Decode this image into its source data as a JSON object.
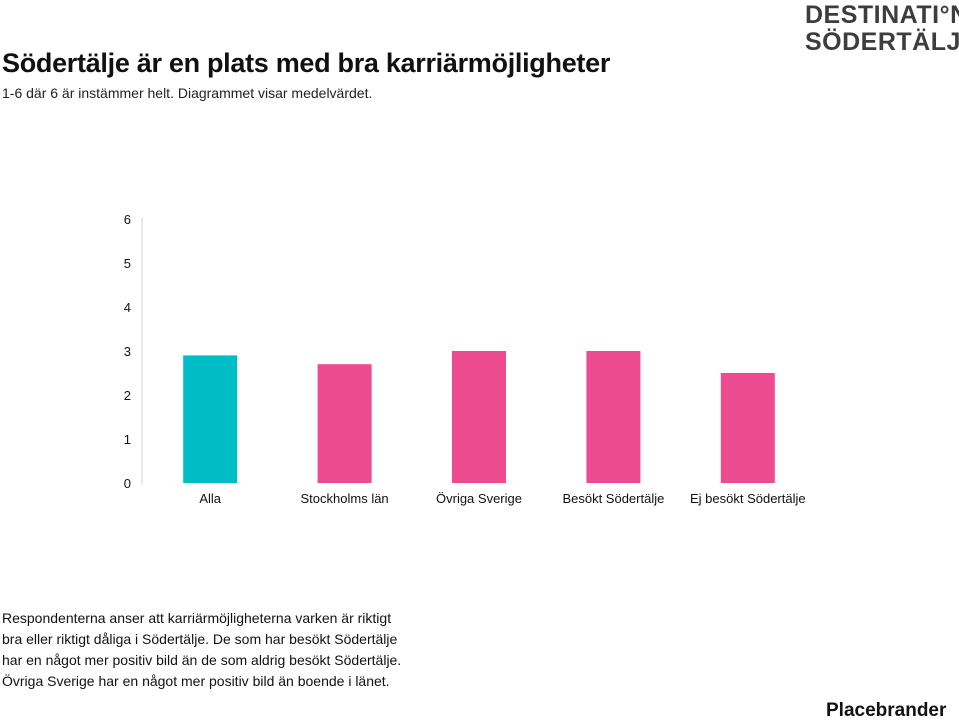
{
  "logo": {
    "line1": "DESTINATI°N",
    "line2": "SÖDERTÄLJE"
  },
  "chart_data": {
    "type": "bar",
    "title": "Södertälje är en plats med bra karriärmöjligheter",
    "subtitle": "1-6 där 6 är instämmer helt. Diagrammet visar medelvärdet.",
    "categories": [
      "Alla",
      "Stockholms län",
      "Övriga Sverige",
      "Besökt Södertälje",
      "Ej besökt Södertälje"
    ],
    "values": [
      2.9,
      2.7,
      3.0,
      3.0,
      2.5
    ],
    "colors": [
      "#00bcc4",
      "#ec4b8f",
      "#ec4b8f",
      "#ec4b8f",
      "#ec4b8f"
    ],
    "ylim": [
      0,
      6
    ],
    "yticks": [
      0,
      1,
      2,
      3,
      4,
      5,
      6
    ],
    "grid": false,
    "legend": "none"
  },
  "note": {
    "lines": [
      "Respondenterna anser att karriärmöjligheterna varken är riktigt",
      "bra eller riktigt dåliga i Södertälje. De som har besökt Södertälje",
      "har en något mer positiv bild än de som aldrig besökt Södertälje.",
      "Övriga Sverige har en något mer positiv bild än boende i länet."
    ]
  },
  "brand": "Placebrander"
}
